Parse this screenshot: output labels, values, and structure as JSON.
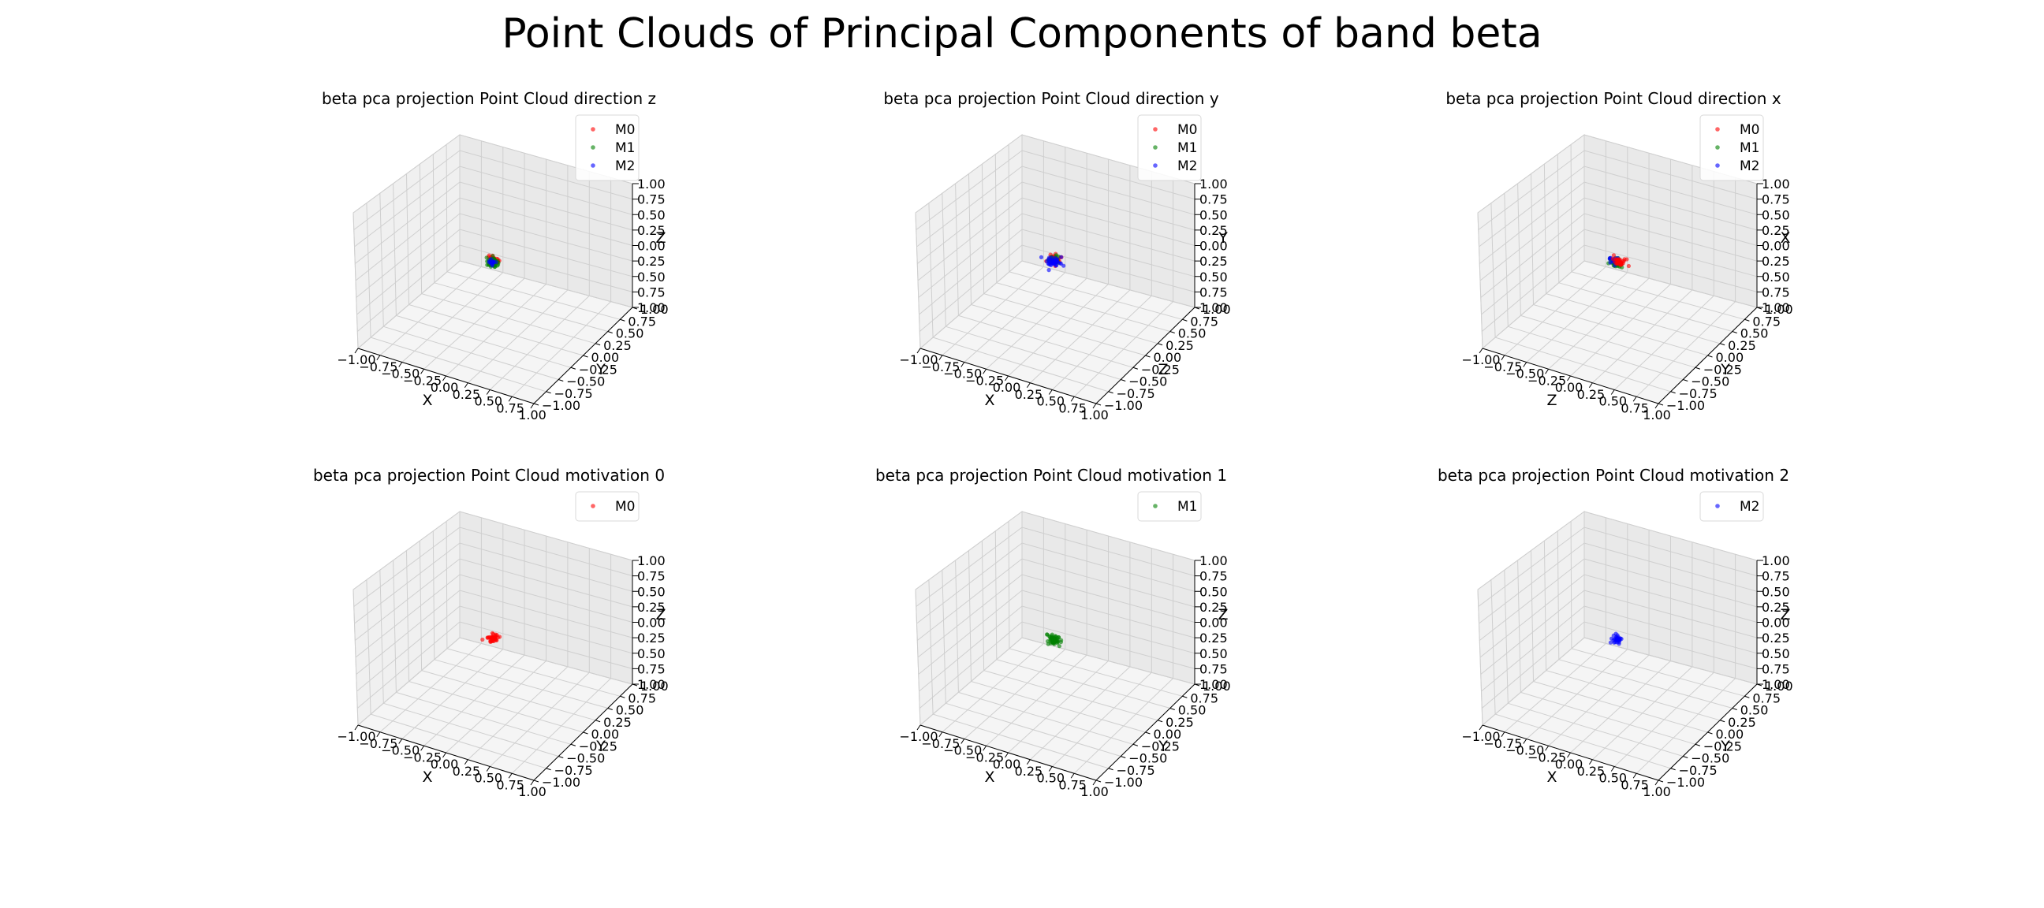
{
  "figure": {
    "title": "Point Clouds of Principal Components of band beta"
  },
  "chart_data": [
    {
      "type": "scatter3d",
      "title": "beta pca projection Point Cloud direction z",
      "xlabel": "X",
      "ylabel": "Y",
      "zlabel": "Z",
      "xlim": [
        -1,
        1
      ],
      "ylim": [
        -1,
        1
      ],
      "zlim": [
        -1,
        1
      ],
      "ticks": [
        "−1.00",
        "−0.75",
        "−0.50",
        "−0.25",
        "0.00",
        "0.25",
        "0.50",
        "0.75",
        "1.00"
      ],
      "zticks": [
        "1.00",
        "0.75",
        "0.50",
        "0.25",
        "0.00",
        "0.25",
        "0.50",
        "0.75",
        "1.00"
      ],
      "legend": [
        "M0",
        "M1",
        "M2"
      ],
      "legend_placement": "upper-right",
      "series": [
        {
          "name": "M0",
          "color": "#ff0000",
          "center": [
            0.02,
            0.0,
            0.05
          ],
          "spread": 0.03,
          "count": 30
        },
        {
          "name": "M1",
          "color": "#008000",
          "center": [
            0.0,
            0.0,
            0.0
          ],
          "spread": 0.035,
          "count": 40
        },
        {
          "name": "M2",
          "color": "#0000ff",
          "center": [
            0.0,
            0.01,
            0.0
          ],
          "spread": 0.02,
          "count": 12
        }
      ]
    },
    {
      "type": "scatter3d",
      "title": "beta pca projection Point Cloud direction y",
      "xlabel": "X",
      "ylabel": "Z",
      "zlabel": "Y",
      "xlim": [
        -1,
        1
      ],
      "ylim": [
        -1,
        1
      ],
      "zlim": [
        -1,
        1
      ],
      "ticks": [
        "−1.00",
        "−0.75",
        "−0.50",
        "−0.25",
        "0.00",
        "0.25",
        "0.50",
        "0.75",
        "1.00"
      ],
      "zticks": [
        "1.00",
        "0.75",
        "0.50",
        "0.25",
        "0.00",
        "0.25",
        "0.50",
        "0.75",
        "1.00"
      ],
      "legend": [
        "M0",
        "M1",
        "M2"
      ],
      "legend_placement": "upper-right",
      "series": [
        {
          "name": "M0",
          "color": "#ff0000",
          "center": [
            0.0,
            0.0,
            0.06
          ],
          "spread": 0.035,
          "count": 35
        },
        {
          "name": "M1",
          "color": "#008000",
          "center": [
            0.0,
            0.0,
            0.03
          ],
          "spread": 0.03,
          "count": 20
        },
        {
          "name": "M2",
          "color": "#0000ff",
          "center": [
            0.0,
            0.0,
            0.0
          ],
          "spread": 0.035,
          "count": 40
        }
      ]
    },
    {
      "type": "scatter3d",
      "title": "beta pca projection Point Cloud direction x",
      "xlabel": "Z",
      "ylabel": "Y",
      "zlabel": "X",
      "xlim": [
        -1,
        1
      ],
      "ylim": [
        -1,
        1
      ],
      "zlim": [
        -1,
        1
      ],
      "ticks": [
        "−1.00",
        "−0.75",
        "−0.50",
        "−0.25",
        "0.00",
        "0.25",
        "0.50",
        "0.75",
        "1.00"
      ],
      "zticks": [
        "1.00",
        "0.75",
        "0.50",
        "0.25",
        "0.00",
        "0.25",
        "0.50",
        "0.75",
        "1.00"
      ],
      "legend": [
        "M0",
        "M1",
        "M2"
      ],
      "legend_placement": "upper-right",
      "series": [
        {
          "name": "M1",
          "color": "#008000",
          "center": [
            0.0,
            0.0,
            -0.02
          ],
          "spread": 0.035,
          "count": 30
        },
        {
          "name": "M2",
          "color": "#0000ff",
          "center": [
            -0.03,
            0.0,
            0.02
          ],
          "spread": 0.025,
          "count": 20
        },
        {
          "name": "M0",
          "color": "#ff0000",
          "center": [
            0.03,
            0.0,
            0.03
          ],
          "spread": 0.035,
          "count": 35
        }
      ]
    },
    {
      "type": "scatter3d",
      "title": "beta pca projection Point Cloud motivation 0",
      "xlabel": "X",
      "ylabel": "Y",
      "zlabel": "Z",
      "xlim": [
        -1,
        1
      ],
      "ylim": [
        -1,
        1
      ],
      "zlim": [
        -1,
        1
      ],
      "ticks": [
        "−1.00",
        "−0.75",
        "−0.50",
        "−0.25",
        "0.00",
        "0.25",
        "0.50",
        "0.75",
        "1.00"
      ],
      "zticks": [
        "1.00",
        "0.75",
        "0.50",
        "0.25",
        "0.00",
        "0.25",
        "0.50",
        "0.75",
        "1.00"
      ],
      "legend": [
        "M0"
      ],
      "legend_placement": "upper-right",
      "series": [
        {
          "name": "M0",
          "color": "#ff0000",
          "center": [
            0.0,
            0.0,
            0.02
          ],
          "spread": 0.03,
          "count": 40
        }
      ]
    },
    {
      "type": "scatter3d",
      "title": "beta pca projection Point Cloud motivation 1",
      "xlabel": "X",
      "ylabel": "Y",
      "zlabel": "Z",
      "xlim": [
        -1,
        1
      ],
      "ylim": [
        -1,
        1
      ],
      "zlim": [
        -1,
        1
      ],
      "ticks": [
        "−1.00",
        "−0.75",
        "−0.50",
        "−0.25",
        "0.00",
        "0.25",
        "0.50",
        "0.75",
        "1.00"
      ],
      "zticks": [
        "1.00",
        "0.75",
        "0.50",
        "0.25",
        "0.00",
        "0.25",
        "0.50",
        "0.75",
        "1.00"
      ],
      "legend": [
        "M1"
      ],
      "legend_placement": "upper-right",
      "series": [
        {
          "name": "M1",
          "color": "#008000",
          "center": [
            0.0,
            0.0,
            0.0
          ],
          "spread": 0.035,
          "count": 45
        }
      ]
    },
    {
      "type": "scatter3d",
      "title": "beta pca projection Point Cloud motivation 2",
      "xlabel": "X",
      "ylabel": "Y",
      "zlabel": "Z",
      "xlim": [
        -1,
        1
      ],
      "ylim": [
        -1,
        1
      ],
      "zlim": [
        -1,
        1
      ],
      "ticks": [
        "−1.00",
        "−0.75",
        "−0.50",
        "−0.25",
        "0.00",
        "0.25",
        "0.50",
        "0.75",
        "1.00"
      ],
      "zticks": [
        "1.00",
        "0.75",
        "0.50",
        "0.25",
        "0.00",
        "0.25",
        "0.50",
        "0.75",
        "1.00"
      ],
      "legend": [
        "M2"
      ],
      "legend_placement": "upper-right",
      "series": [
        {
          "name": "M2",
          "color": "#0000ff",
          "center": [
            0.0,
            0.0,
            0.0
          ],
          "spread": 0.025,
          "count": 30
        }
      ]
    }
  ]
}
